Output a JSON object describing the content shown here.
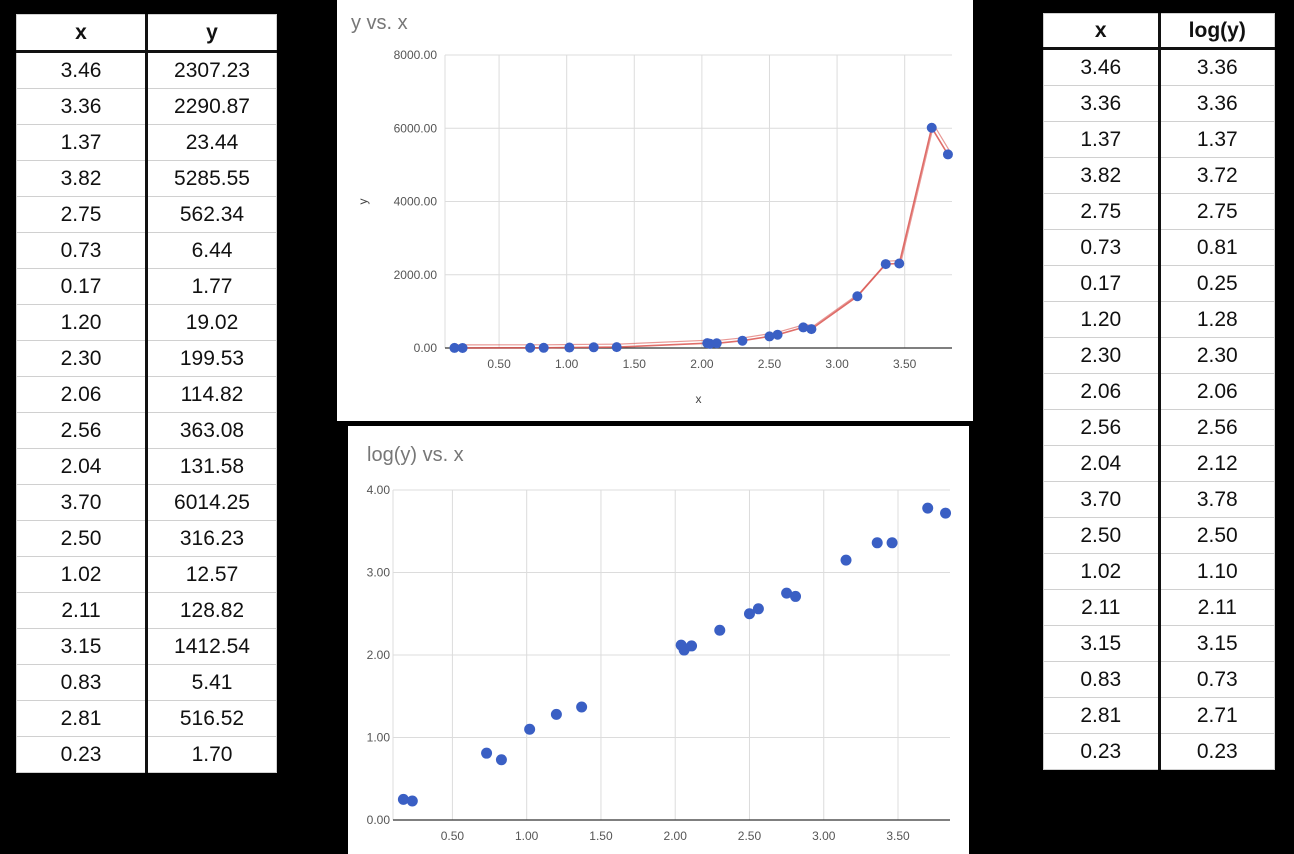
{
  "left_table": {
    "headers": [
      "x",
      "y"
    ],
    "rows": [
      [
        "3.46",
        "2307.23"
      ],
      [
        "3.36",
        "2290.87"
      ],
      [
        "1.37",
        "23.44"
      ],
      [
        "3.82",
        "5285.55"
      ],
      [
        "2.75",
        "562.34"
      ],
      [
        "0.73",
        "6.44"
      ],
      [
        "0.17",
        "1.77"
      ],
      [
        "1.20",
        "19.02"
      ],
      [
        "2.30",
        "199.53"
      ],
      [
        "2.06",
        "114.82"
      ],
      [
        "2.56",
        "363.08"
      ],
      [
        "2.04",
        "131.58"
      ],
      [
        "3.70",
        "6014.25"
      ],
      [
        "2.50",
        "316.23"
      ],
      [
        "1.02",
        "12.57"
      ],
      [
        "2.11",
        "128.82"
      ],
      [
        "3.15",
        "1412.54"
      ],
      [
        "0.83",
        "5.41"
      ],
      [
        "2.81",
        "516.52"
      ],
      [
        "0.23",
        "1.70"
      ]
    ]
  },
  "right_table": {
    "headers": [
      "x",
      "log(y)"
    ],
    "rows": [
      [
        "3.46",
        "3.36"
      ],
      [
        "3.36",
        "3.36"
      ],
      [
        "1.37",
        "1.37"
      ],
      [
        "3.82",
        "3.72"
      ],
      [
        "2.75",
        "2.75"
      ],
      [
        "0.73",
        "0.81"
      ],
      [
        "0.17",
        "0.25"
      ],
      [
        "1.20",
        "1.28"
      ],
      [
        "2.30",
        "2.30"
      ],
      [
        "2.06",
        "2.06"
      ],
      [
        "2.56",
        "2.56"
      ],
      [
        "2.04",
        "2.12"
      ],
      [
        "3.70",
        "3.78"
      ],
      [
        "2.50",
        "2.50"
      ],
      [
        "1.02",
        "1.10"
      ],
      [
        "2.11",
        "2.11"
      ],
      [
        "3.15",
        "3.15"
      ],
      [
        "0.83",
        "0.73"
      ],
      [
        "2.81",
        "2.71"
      ],
      [
        "0.23",
        "0.23"
      ]
    ]
  },
  "chart_data": [
    {
      "type": "scatter",
      "title": "y vs. x",
      "xlabel": "x",
      "ylabel": "y",
      "xlim": [
        0.1,
        3.85
      ],
      "ylim": [
        0,
        8000
      ],
      "xticks": [
        0.5,
        1.0,
        1.5,
        2.0,
        2.5,
        3.0,
        3.5
      ],
      "xtick_labels": [
        "0.50",
        "1.00",
        "1.50",
        "2.00",
        "2.50",
        "3.00",
        "3.50"
      ],
      "yticks": [
        0,
        2000,
        4000,
        6000,
        8000
      ],
      "ytick_labels": [
        "0.00",
        "2000.00",
        "4000.00",
        "6000.00",
        "8000.00"
      ],
      "grid": true,
      "point_color": "#3a5fc4",
      "trend_color": "#d9534f",
      "series": [
        {
          "x": [
            3.46,
            3.36,
            1.37,
            3.82,
            2.75,
            0.73,
            0.17,
            1.2,
            2.3,
            2.06,
            2.56,
            2.04,
            3.7,
            2.5,
            1.02,
            2.11,
            3.15,
            0.83,
            2.81,
            0.23
          ],
          "y": [
            2307.23,
            2290.87,
            23.44,
            5285.55,
            562.34,
            6.44,
            1.77,
            19.02,
            199.53,
            114.82,
            363.08,
            131.58,
            6014.25,
            316.23,
            12.57,
            128.82,
            1412.54,
            5.41,
            516.52,
            1.7
          ]
        }
      ]
    },
    {
      "type": "scatter",
      "title": "log(y) vs. x",
      "xlabel": "",
      "ylabel": "",
      "xlim": [
        0.1,
        3.85
      ],
      "ylim": [
        0,
        4
      ],
      "xticks": [
        0.5,
        1.0,
        1.5,
        2.0,
        2.5,
        3.0,
        3.5
      ],
      "xtick_labels": [
        "0.50",
        "1.00",
        "1.50",
        "2.00",
        "2.50",
        "3.00",
        "3.50"
      ],
      "yticks": [
        0,
        1,
        2,
        3,
        4
      ],
      "ytick_labels": [
        "0.00",
        "1.00",
        "2.00",
        "3.00",
        "4.00"
      ],
      "grid": true,
      "point_color": "#3a5fc4",
      "series": [
        {
          "x": [
            3.46,
            3.36,
            1.37,
            3.82,
            2.75,
            0.73,
            0.17,
            1.2,
            2.3,
            2.06,
            2.56,
            2.04,
            3.7,
            2.5,
            1.02,
            2.11,
            3.15,
            0.83,
            2.81,
            0.23
          ],
          "y": [
            3.36,
            3.36,
            1.37,
            3.72,
            2.75,
            0.81,
            0.25,
            1.28,
            2.3,
            2.06,
            2.56,
            2.12,
            3.78,
            2.5,
            1.1,
            2.11,
            3.15,
            0.73,
            2.71,
            0.23
          ]
        }
      ]
    }
  ]
}
